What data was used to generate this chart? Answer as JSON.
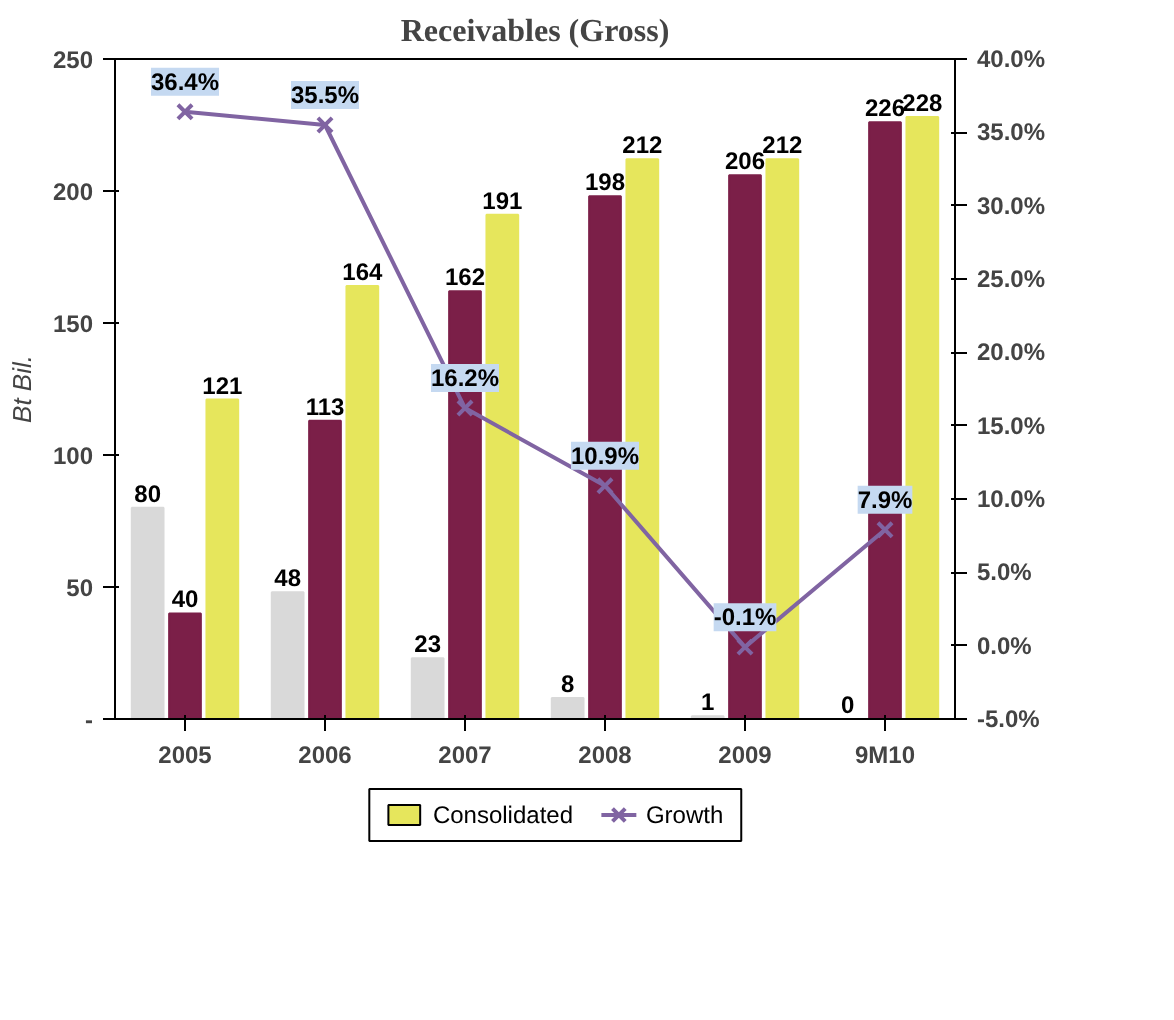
{
  "chart_data": {
    "type": "bar",
    "title": "Receivables (Gross)",
    "ylabel": "Bt Bil.",
    "categories": [
      "2005",
      "2006",
      "2007",
      "2008",
      "2009",
      "9M10"
    ],
    "series": [
      {
        "color": "#d9d9d9",
        "values": [
          80,
          48,
          23,
          8,
          1,
          0
        ]
      },
      {
        "color": "#7b1f48",
        "values": [
          40,
          113,
          162,
          198,
          206,
          226
        ]
      },
      {
        "name": "Consolidated",
        "color": "#e6e65c",
        "values": [
          121,
          164,
          191,
          212,
          212,
          228
        ]
      },
      {
        "name": "Growth",
        "type": "line",
        "axis": "y2",
        "color": "#8064a2",
        "marker": "cross",
        "values": [
          36.4,
          35.5,
          16.2,
          10.9,
          -0.1,
          7.9
        ],
        "value_labels": [
          "36.4%",
          "35.5%",
          "16.2%",
          "10.9%",
          "-0.1%",
          "7.9%"
        ]
      }
    ],
    "ylim": [
      0,
      250
    ],
    "yticks": [
      {
        "value": 0,
        "label": "-"
      },
      50,
      100,
      150,
      200,
      250
    ],
    "y2lim": [
      -5,
      40
    ],
    "y2ticks": [
      {
        "value": -5,
        "label": "-5.0%"
      },
      {
        "value": 0,
        "label": "0.0%"
      },
      {
        "value": 5,
        "label": "5.0%"
      },
      {
        "value": 10,
        "label": "10.0%"
      },
      {
        "value": 15,
        "label": "15.0%"
      },
      {
        "value": 20,
        "label": "20.0%"
      },
      {
        "value": 25,
        "label": "25.0%"
      },
      {
        "value": 30,
        "label": "30.0%"
      },
      {
        "value": 35,
        "label": "35.0%"
      },
      {
        "value": 40,
        "label": "40.0%"
      }
    ],
    "data_labels": true,
    "legend": "bottom",
    "grid": false
  }
}
